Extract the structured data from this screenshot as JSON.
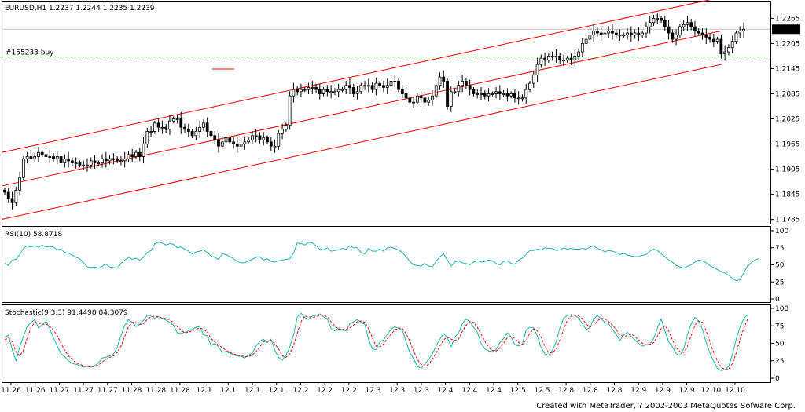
{
  "chart_data": [
    {
      "type": "candlestick",
      "title": "EURUSD,H1  1.2237  1.2244  1.2235  1.2239",
      "y_ticks": [
        "1.2265",
        "1.2205",
        "1.2145",
        "1.2085",
        "1.2025",
        "1.1965",
        "1.1905",
        "1.1845",
        "1.1785"
      ],
      "ylim": [
        1.1775,
        1.2305
      ],
      "current_price": "1.2239",
      "order_label": "#155233 buy",
      "order_price": 1.2173,
      "grid": false,
      "close": [
        1.185,
        1.1835,
        1.1825,
        1.1855,
        1.1885,
        1.193,
        1.1935,
        1.193,
        1.1935,
        1.1945,
        1.194,
        1.1935,
        1.1935,
        1.193,
        1.1935,
        1.192,
        1.193,
        1.1925,
        1.192,
        1.192,
        1.1915,
        1.1915,
        1.1915,
        1.1925,
        1.192,
        1.192,
        1.193,
        1.1925,
        1.193,
        1.193,
        1.1925,
        1.1925,
        1.193,
        1.194,
        1.1935,
        1.1945,
        1.1935,
        1.1965,
        1.1995,
        1.1995,
        1.2015,
        1.2005,
        1.2005,
        1.2,
        1.202,
        1.2025,
        1.2025,
        1.2005,
        1.2,
        1.1995,
        1.1985,
        1.1995,
        1.2005,
        1.2015,
        1.1995,
        1.1985,
        1.1975,
        1.196,
        1.197,
        1.198,
        1.197,
        1.1965,
        1.196,
        1.1965,
        1.197,
        1.1975,
        1.1985,
        1.1985,
        1.1975,
        1.198,
        1.197,
        1.196,
        1.196,
        1.199,
        1.2,
        1.201,
        1.208,
        1.2095,
        1.209,
        1.2095,
        1.2095,
        1.21,
        1.21,
        1.2095,
        1.2085,
        1.2095,
        1.209,
        1.209,
        1.209,
        1.2095,
        1.2095,
        1.2105,
        1.21,
        1.2085,
        1.209,
        1.2105,
        1.2105,
        1.2105,
        1.2095,
        1.211,
        1.2105,
        1.21,
        1.2105,
        1.2115,
        1.2115,
        1.2095,
        1.2085,
        1.2075,
        1.2065,
        1.2065,
        1.208,
        1.2075,
        1.2065,
        1.207,
        1.208,
        1.2105,
        1.2125,
        1.2115,
        1.2055,
        1.209,
        1.209,
        1.2105,
        1.2115,
        1.2105,
        1.2095,
        1.2085,
        1.2085,
        1.2085,
        1.208,
        1.2085,
        1.2085,
        1.209,
        1.2085,
        1.2085,
        1.208,
        1.2085,
        1.2075,
        1.2075,
        1.2075,
        1.2095,
        1.211,
        1.213,
        1.2155,
        1.217,
        1.2165,
        1.2175,
        1.2175,
        1.2175,
        1.2165,
        1.2165,
        1.217,
        1.2165,
        1.2175,
        1.2185,
        1.2205,
        1.2215,
        1.2225,
        1.2235,
        1.223,
        1.2225,
        1.223,
        1.2235,
        1.223,
        1.2225,
        1.2225,
        1.2225,
        1.223,
        1.2225,
        1.223,
        1.2225,
        1.223,
        1.2245,
        1.2255,
        1.2265,
        1.2265,
        1.226,
        1.2245,
        1.223,
        1.2215,
        1.2225,
        1.2245,
        1.225,
        1.2255,
        1.2245,
        1.2235,
        1.223,
        1.2225,
        1.222,
        1.2215,
        1.221,
        1.2215,
        1.218,
        1.2185,
        1.2195,
        1.221,
        1.223,
        1.2235,
        1.2239
      ],
      "channel_lines": [
        {
          "from": [
            0,
            1.1945
          ],
          "to": [
            191,
            1.2315
          ]
        },
        {
          "from": [
            0,
            1.1865
          ],
          "to": [
            191,
            1.2235
          ]
        },
        {
          "from": [
            0,
            1.1785
          ],
          "to": [
            191,
            1.2155
          ]
        }
      ]
    },
    {
      "type": "line",
      "title": "RSI(10)  58.8718",
      "y_ticks": [
        "100",
        "75",
        "50",
        "25",
        "0"
      ],
      "ylim": [
        0,
        100
      ],
      "values": [
        53,
        49,
        57,
        58,
        65,
        74,
        78,
        76,
        78,
        76,
        79,
        76,
        77,
        76,
        72,
        73,
        68,
        67,
        64,
        61,
        59,
        53,
        47,
        46,
        47,
        45,
        48,
        51,
        47,
        46,
        45,
        52,
        57,
        61,
        58,
        60,
        57,
        61,
        68,
        71,
        81,
        83,
        82,
        79,
        81,
        80,
        75,
        76,
        73,
        70,
        66,
        69,
        70,
        72,
        68,
        63,
        61,
        58,
        66,
        65,
        62,
        59,
        55,
        53,
        53,
        56,
        58,
        61,
        62,
        57,
        59,
        55,
        54,
        56,
        57,
        58,
        59,
        67,
        82,
        81,
        79,
        83,
        82,
        78,
        73,
        72,
        75,
        70,
        71,
        72,
        74,
        73,
        78,
        75,
        75,
        68,
        66,
        74,
        70,
        70,
        73,
        70,
        75,
        76,
        74,
        72,
        68,
        62,
        55,
        50,
        49,
        48,
        52,
        48,
        47,
        55,
        62,
        66,
        57,
        48,
        54,
        56,
        53,
        52,
        50,
        54,
        56,
        54,
        55,
        57,
        56,
        52,
        50,
        55,
        56,
        52,
        51,
        57,
        60,
        65,
        71,
        71,
        73,
        72,
        75,
        74,
        74,
        71,
        72,
        75,
        73,
        74,
        73,
        73,
        74,
        73,
        76,
        78,
        74,
        72,
        69,
        71,
        70,
        68,
        65,
        67,
        64,
        63,
        62,
        62,
        64,
        65,
        70,
        73,
        71,
        66,
        62,
        57,
        54,
        49,
        47,
        45,
        48,
        50,
        54,
        57,
        56,
        53,
        49,
        46,
        43,
        40,
        38,
        35,
        30,
        27,
        28,
        38,
        48,
        53,
        57,
        59
      ]
    },
    {
      "type": "line",
      "title": "Stochastic(9,3,3)  91.4498  84.3079",
      "y_ticks": [
        "100",
        "75",
        "50",
        "25",
        "0"
      ],
      "ylim": [
        0,
        100
      ],
      "series": [
        {
          "values": [
            58,
            62,
            41,
            25,
            45,
            60,
            74,
            80,
            84,
            72,
            76,
            82,
            71,
            58,
            46,
            35,
            31,
            25,
            21,
            20,
            18,
            16,
            17,
            16,
            18,
            22,
            29,
            30,
            32,
            35,
            44,
            61,
            76,
            84,
            80,
            74,
            77,
            83,
            90,
            89,
            86,
            88,
            86,
            83,
            80,
            76,
            65,
            64,
            66,
            68,
            70,
            73,
            74,
            62,
            61,
            47,
            50,
            45,
            37,
            38,
            36,
            33,
            32,
            31,
            29,
            33,
            36,
            46,
            53,
            56,
            51,
            56,
            40,
            30,
            26,
            33,
            45,
            62,
            88,
            93,
            87,
            84,
            89,
            90,
            92,
            88,
            85,
            71,
            68,
            72,
            69,
            68,
            78,
            81,
            84,
            80,
            77,
            56,
            42,
            41,
            52,
            55,
            63,
            70,
            74,
            71,
            69,
            52,
            37,
            28,
            17,
            14,
            20,
            27,
            35,
            46,
            56,
            64,
            58,
            45,
            59,
            65,
            78,
            85,
            81,
            73,
            66,
            50,
            42,
            39,
            38,
            41,
            51,
            57,
            65,
            59,
            48,
            46,
            49,
            69,
            73,
            72,
            60,
            44,
            35,
            33,
            40,
            52,
            72,
            86,
            90,
            91,
            90,
            86,
            78,
            70,
            72,
            84,
            90,
            85,
            80,
            78,
            70,
            63,
            54,
            62,
            66,
            60,
            55,
            50,
            46,
            48,
            49,
            57,
            72,
            85,
            68,
            52,
            45,
            35,
            33,
            42,
            62,
            78,
            87,
            82,
            70,
            51,
            36,
            24,
            14,
            11,
            12,
            17,
            34,
            56,
            73,
            85,
            91
          ]
        },
        {
          "values": [
            55,
            58,
            52,
            38,
            32,
            40,
            58,
            72,
            80,
            79,
            77,
            78,
            74,
            69,
            61,
            50,
            40,
            32,
            27,
            22,
            20,
            18,
            17,
            16,
            17,
            19,
            23,
            27,
            30,
            32,
            37,
            46,
            60,
            74,
            80,
            80,
            77,
            78,
            84,
            88,
            89,
            88,
            86,
            86,
            83,
            80,
            74,
            69,
            65,
            66,
            68,
            70,
            72,
            70,
            66,
            57,
            52,
            47,
            44,
            40,
            37,
            35,
            33,
            32,
            31,
            31,
            33,
            38,
            45,
            52,
            53,
            54,
            49,
            42,
            32,
            30,
            35,
            47,
            65,
            81,
            89,
            88,
            87,
            88,
            90,
            90,
            88,
            81,
            75,
            70,
            70,
            70,
            72,
            76,
            81,
            82,
            80,
            71,
            58,
            46,
            45,
            49,
            57,
            63,
            69,
            72,
            71,
            64,
            53,
            39,
            27,
            20,
            17,
            20,
            27,
            36,
            46,
            55,
            59,
            56,
            54,
            56,
            67,
            76,
            81,
            80,
            73,
            63,
            53,
            44,
            40,
            39,
            43,
            50,
            58,
            60,
            57,
            51,
            48,
            55,
            64,
            71,
            68,
            59,
            46,
            37,
            36,
            42,
            55,
            70,
            83,
            89,
            90,
            89,
            85,
            78,
            73,
            75,
            82,
            86,
            85,
            81,
            76,
            70,
            62,
            60,
            61,
            63,
            60,
            55,
            50,
            48,
            48,
            51,
            60,
            71,
            75,
            68,
            55,
            44,
            38,
            37,
            46,
            61,
            76,
            82,
            80,
            68,
            52,
            37,
            25,
            16,
            12,
            13,
            21,
            36,
            55,
            71,
            84
          ]
        }
      ]
    }
  ],
  "x_ticks": [
    "11.26",
    "11.26",
    "11.27",
    "11.27",
    "11.27",
    "11.28",
    "11.28",
    "11.28",
    "12.1",
    "12.1",
    "12.1",
    "12.1",
    "12.2",
    "12.2",
    "12.2",
    "12.3",
    "12.3",
    "12.3",
    "12.4",
    "12.4",
    "12.4",
    "12.5",
    "12.5",
    "12.8",
    "12.8",
    "12.8",
    "12.9",
    "12.9",
    "12.9",
    "12.10",
    "12.10"
  ],
  "footer": "Created with MetaTrader, ? 2002-2003 MetaQuotes Sofware Corp.",
  "colors": {
    "channel": "#ff0000",
    "order_line": "#008000",
    "rsi_line": "#20b2aa",
    "stoch_main": "#20b2aa",
    "stoch_signal": "#ff0000",
    "candle": "#000000",
    "frame": "#000000"
  }
}
